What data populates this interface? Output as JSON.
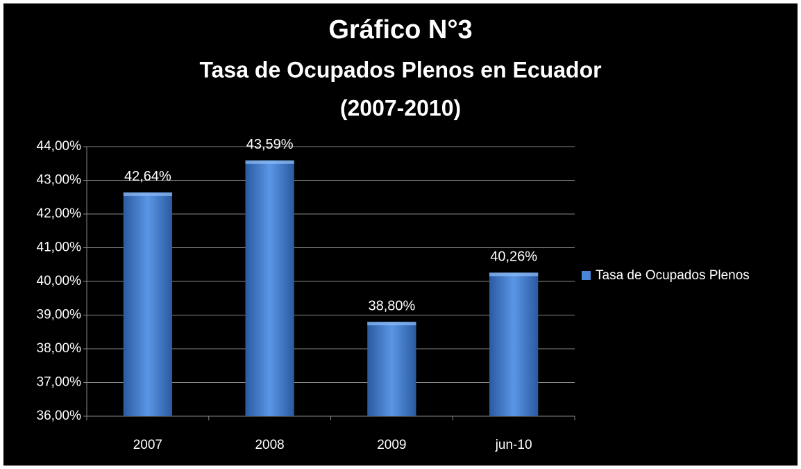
{
  "chart_data": {
    "type": "bar",
    "title": [
      "Gráfico N°3",
      "Tasa de Ocupados Plenos en Ecuador",
      "(2007-2010)"
    ],
    "categories": [
      "2007",
      "2008",
      "2009",
      "jun-10"
    ],
    "series": [
      {
        "name": "Tasa de Ocupados Plenos",
        "color": "#4a86d8",
        "values": [
          42.64,
          43.59,
          38.8,
          40.26
        ],
        "value_labels": [
          "42,64%",
          "43,59%",
          "38,80%",
          "40,26%"
        ]
      }
    ],
    "ylim": [
      36,
      44
    ],
    "yticks": [
      {
        "value": 36,
        "label": "36,00%"
      },
      {
        "value": 37,
        "label": "37,00%"
      },
      {
        "value": 38,
        "label": "38,00%"
      },
      {
        "value": 39,
        "label": "39,00%"
      },
      {
        "value": 40,
        "label": "40,00%"
      },
      {
        "value": 41,
        "label": "41,00%"
      },
      {
        "value": 42,
        "label": "42,00%"
      },
      {
        "value": 43,
        "label": "43,00%"
      },
      {
        "value": 44,
        "label": "44,00%"
      }
    ],
    "grid": true,
    "legend": "right"
  }
}
